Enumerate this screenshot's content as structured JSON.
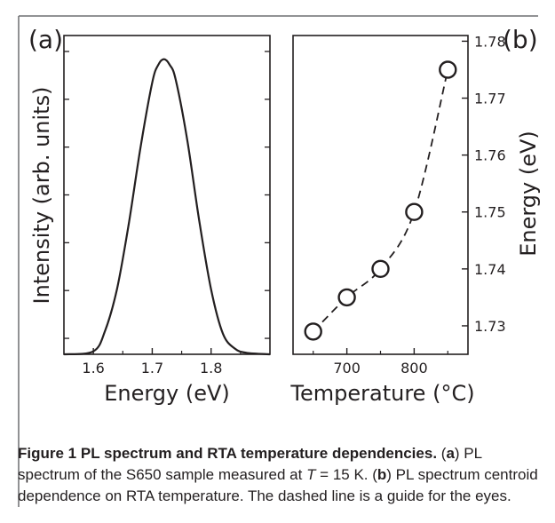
{
  "chart_data": [
    {
      "panel": "(a)",
      "type": "line",
      "xlabel": "Energy (eV)",
      "ylabel": "Intensity (arb. units)",
      "xlim": [
        1.55,
        1.9
      ],
      "ylim": [
        0,
        1.05
      ],
      "x_ticks": [
        "1.6",
        "1.7",
        "1.8"
      ],
      "x_tick_values": [
        1.6,
        1.7,
        1.8
      ],
      "y_tick_labels_shown": false,
      "series": [
        {
          "x": [
            1.55,
            1.6,
            1.62,
            1.64,
            1.66,
            1.68,
            1.7,
            1.71,
            1.72,
            1.73,
            1.74,
            1.76,
            1.78,
            1.8,
            1.82,
            1.84,
            1.86,
            1.9
          ],
          "y": [
            0.0,
            0.01,
            0.08,
            0.22,
            0.44,
            0.7,
            0.92,
            0.98,
            1.0,
            0.98,
            0.93,
            0.72,
            0.45,
            0.22,
            0.07,
            0.02,
            0.005,
            0.0
          ]
        }
      ],
      "grid": false
    },
    {
      "panel": "(b)",
      "type": "scatter",
      "xlabel": "Temperature (°C)",
      "ylabel": "Energy (eV)",
      "xlim": [
        620,
        880
      ],
      "ylim": [
        1.725,
        1.781
      ],
      "x_ticks": [
        "700",
        "800"
      ],
      "x_tick_values": [
        700,
        800
      ],
      "y_ticks": [
        "1.73",
        "1.74",
        "1.75",
        "1.76",
        "1.77",
        "1.78"
      ],
      "y_tick_values": [
        1.73,
        1.74,
        1.75,
        1.76,
        1.77,
        1.78
      ],
      "series": [
        {
          "x": [
            650,
            700,
            750,
            800,
            850
          ],
          "y": [
            1.729,
            1.735,
            1.74,
            1.75,
            1.775
          ],
          "marker": "open-circle",
          "guide_line": "dashed"
        }
      ],
      "grid": false
    }
  ],
  "caption": {
    "label": "Figure 1",
    "title": "PL spectrum and RTA temperature dependencies.",
    "a_open": "(",
    "a_letter": "a",
    "a_text": ") PL spectrum of the S650 sample measured at ",
    "t_var": "T",
    "t_eq": " = 15 K. (",
    "b_letter": "b",
    "b_text": ") PL spectrum centroid dependence on RTA temperature. The dashed line is a guide for the eyes."
  },
  "colors": {
    "ink": "#231f20",
    "frame": "#6d6e71"
  }
}
